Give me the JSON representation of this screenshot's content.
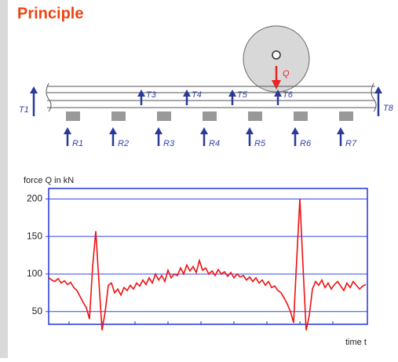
{
  "title": "Principle",
  "diagram": {
    "load": "Q",
    "forces_top": [
      "T1",
      "T3",
      "T4",
      "T5",
      "T6",
      "T8"
    ],
    "forces_bottom": [
      "R1",
      "R2",
      "R3",
      "R4",
      "R5",
      "R6",
      "R7"
    ]
  },
  "chart_data": {
    "type": "line",
    "ylabel": "force Q in kN",
    "xlabel": "time t",
    "ylim": [
      33,
      214
    ],
    "yticks": [
      50,
      100,
      150,
      200
    ],
    "grid": true,
    "series": [
      {
        "color": "#ee1111",
        "values": [
          95,
          92,
          90,
          94,
          88,
          91,
          86,
          89,
          82,
          78,
          70,
          62,
          55,
          40,
          110,
          157,
          90,
          25,
          50,
          85,
          88,
          75,
          80,
          72,
          82,
          78,
          85,
          80,
          88,
          84,
          92,
          86,
          95,
          88,
          100,
          92,
          98,
          90,
          105,
          95,
          100,
          98,
          108,
          100,
          112,
          104,
          110,
          102,
          118,
          105,
          108,
          100,
          104,
          98,
          106,
          100,
          103,
          97,
          102,
          95,
          100,
          96,
          98,
          92,
          96,
          90,
          95,
          88,
          92,
          85,
          90,
          82,
          84,
          78,
          75,
          68,
          60,
          50,
          35,
          120,
          200,
          110,
          25,
          45,
          80,
          90,
          85,
          92,
          82,
          88,
          80,
          86,
          90,
          84,
          78,
          88,
          82,
          90,
          85,
          80,
          84,
          86
        ]
      }
    ]
  }
}
